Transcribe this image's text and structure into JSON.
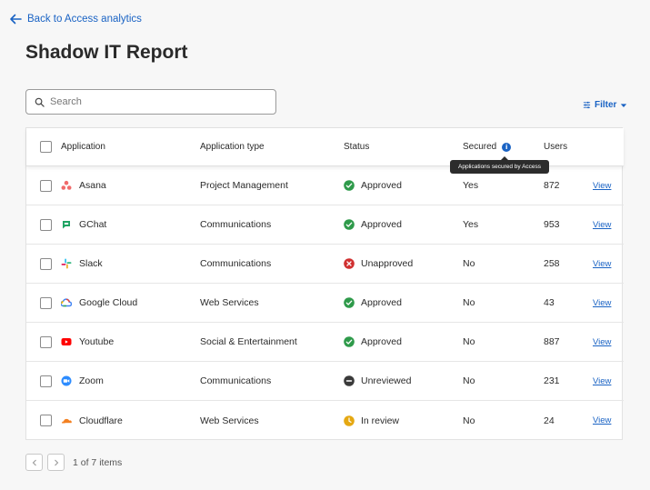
{
  "nav": {
    "back_label": "Back to Access analytics"
  },
  "page": {
    "title": "Shadow IT Report"
  },
  "search": {
    "placeholder": "Search",
    "value": ""
  },
  "filter": {
    "label": "Filter"
  },
  "table": {
    "columns": {
      "application": "Application",
      "type": "Application type",
      "status": "Status",
      "secured": "Secured",
      "users": "Users"
    },
    "secured_tooltip": "Applications secured by Access",
    "view_label": "View",
    "rows": [
      {
        "app": "Asana",
        "icon": "asana-icon",
        "type": "Project Management",
        "status": "Approved",
        "status_icon": "approved-check-icon",
        "secured": "Yes",
        "users": "872"
      },
      {
        "app": "GChat",
        "icon": "gchat-icon",
        "type": "Communications",
        "status": "Approved",
        "status_icon": "approved-check-icon",
        "secured": "Yes",
        "users": "953"
      },
      {
        "app": "Slack",
        "icon": "slack-icon",
        "type": "Communications",
        "status": "Unapproved",
        "status_icon": "unapproved-x-icon",
        "secured": "No",
        "users": "258"
      },
      {
        "app": "Google Cloud",
        "icon": "google-cloud-icon",
        "type": "Web Services",
        "status": "Approved",
        "status_icon": "approved-check-icon",
        "secured": "No",
        "users": "43"
      },
      {
        "app": "Youtube",
        "icon": "youtube-icon",
        "type": "Social & Entertainment",
        "status": "Approved",
        "status_icon": "approved-check-icon",
        "secured": "No",
        "users": "887"
      },
      {
        "app": "Zoom",
        "icon": "zoom-icon",
        "type": "Communications",
        "status": "Unreviewed",
        "status_icon": "unreviewed-dash-icon",
        "secured": "No",
        "users": "231"
      },
      {
        "app": "Cloudflare",
        "icon": "cloudflare-icon",
        "type": "Web Services",
        "status": "In review",
        "status_icon": "in-review-clock-icon",
        "secured": "No",
        "users": "24"
      }
    ]
  },
  "pagination": {
    "summary": "1 of 7 items"
  },
  "colors": {
    "accent": "#1a63c4",
    "approved": "#2e9a4a",
    "unapproved": "#d03030",
    "unreviewed": "#3a3a3a",
    "in_review": "#e5a812"
  }
}
